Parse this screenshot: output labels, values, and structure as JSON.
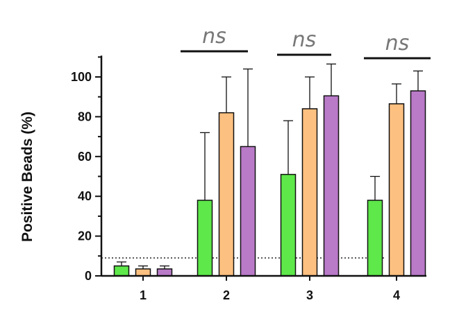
{
  "chart_data": {
    "type": "bar",
    "categories": [
      "1",
      "2",
      "3",
      "4"
    ],
    "ylabel": "Positive Beads (%)",
    "xlabel": "",
    "ylim": [
      0,
      110
    ],
    "yticks": [
      "0",
      "20",
      "40",
      "60",
      "80",
      "100"
    ],
    "threshold_line": 9,
    "series": [
      {
        "color": "#5ee84a",
        "values": [
          5,
          38,
          51,
          38
        ],
        "errors": [
          2,
          34,
          27,
          12
        ]
      },
      {
        "color": "#fcc080",
        "values": [
          3.5,
          82,
          84,
          86.5
        ],
        "errors": [
          1.5,
          18,
          16,
          10
        ]
      },
      {
        "color": "#b97ac8",
        "values": [
          3.5,
          65,
          90.5,
          93
        ],
        "errors": [
          1.5,
          39,
          16,
          10
        ]
      }
    ],
    "annotations": [
      {
        "text": "ns",
        "category": "2"
      },
      {
        "text": "ns",
        "category": "3"
      },
      {
        "text": "ns",
        "category": "4"
      }
    ]
  }
}
